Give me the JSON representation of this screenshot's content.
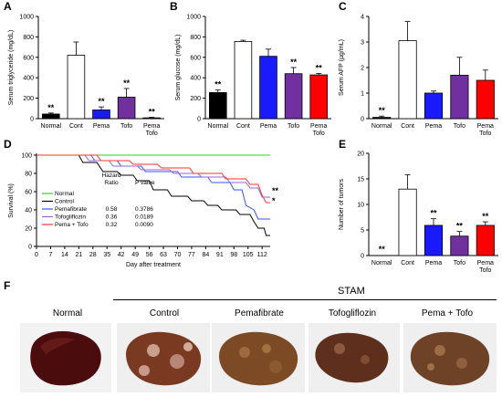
{
  "figure": {
    "panels": [
      "A",
      "B",
      "C",
      "D",
      "E",
      "F"
    ],
    "colors": {
      "normal": "#000000",
      "cont": "#ffffff",
      "pema": "#1a1aff",
      "tofo": "#7030a0",
      "pematofo": "#ff0000",
      "pematofo_line": "#ff3333",
      "survival_normal": "#33cc33",
      "survival_pema": "#3355ff",
      "survival_tofo": "#9966cc"
    },
    "sig": "**",
    "sig_single": "*"
  },
  "chart_data": [
    {
      "panel": "A",
      "type": "bar",
      "categories": [
        "Normal",
        "Cont",
        "Pema",
        "Tofo",
        "Pema\nTofo"
      ],
      "cat_lines": [
        [
          "Normal"
        ],
        [
          "Cont"
        ],
        [
          "Pema"
        ],
        [
          "Tofo"
        ],
        [
          "Pema",
          "Tofo"
        ]
      ],
      "values": [
        45,
        620,
        85,
        210,
        8
      ],
      "errors": [
        10,
        130,
        30,
        85,
        5
      ],
      "sig": [
        "**",
        "",
        "**",
        "**",
        "**"
      ],
      "ylabel": "Serum triglyceride (mg/dL)",
      "ylim": [
        0,
        1000
      ],
      "yticks": [
        "0",
        "200",
        "400",
        "600",
        "800",
        "1000"
      ]
    },
    {
      "panel": "B",
      "type": "bar",
      "categories": [
        "Normal",
        "Cont",
        "Pema",
        "Tofo",
        "Pema\nTofo"
      ],
      "cat_lines": [
        [
          "Normal"
        ],
        [
          "Cont"
        ],
        [
          "Pema"
        ],
        [
          "Tofo"
        ],
        [
          "Pema",
          "Tofo"
        ]
      ],
      "values": [
        255,
        755,
        610,
        440,
        428
      ],
      "errors": [
        25,
        12,
        70,
        60,
        15
      ],
      "sig": [
        "**",
        "",
        "",
        "**",
        "**"
      ],
      "ylabel": "Serum glucose (mg/dL)",
      "ylim": [
        0,
        1000
      ],
      "yticks": [
        "0",
        "200",
        "400",
        "600",
        "800",
        "1000"
      ]
    },
    {
      "panel": "C",
      "type": "bar",
      "categories": [
        "Normal",
        "Cont",
        "Pema",
        "Tofo",
        "Pema\nTofo"
      ],
      "cat_lines": [
        [
          "Normal"
        ],
        [
          "Cont"
        ],
        [
          "Pema"
        ],
        [
          "Tofo"
        ],
        [
          "Pema",
          "Tofo"
        ]
      ],
      "values": [
        0.05,
        3.05,
        1.0,
        1.7,
        1.5
      ],
      "errors": [
        0.05,
        0.75,
        0.08,
        0.7,
        0.4
      ],
      "sig": [
        "**",
        "",
        "",
        "",
        ""
      ],
      "ylabel": "Serum AFP (µg/mL)",
      "ylim": [
        0,
        4
      ],
      "yticks": [
        "0",
        "1",
        "2",
        "3",
        "4"
      ]
    },
    {
      "panel": "D",
      "type": "line",
      "xlabel": "Day after treatment",
      "ylabel": "Survival (%)",
      "xlim": [
        0,
        116
      ],
      "ylim": [
        0,
        100
      ],
      "xticks": [
        "0",
        "7",
        "14",
        "21",
        "28",
        "35",
        "42",
        "49",
        "56",
        "63",
        "70",
        "77",
        "84",
        "91",
        "98",
        "105",
        "112"
      ],
      "yticks": [
        "0",
        "20",
        "40",
        "60",
        "80",
        "100"
      ],
      "series": [
        {
          "name": "Normal",
          "color": "#33cc33",
          "points": [
            [
              0,
              100
            ],
            [
              116,
              100
            ]
          ]
        },
        {
          "name": "Control",
          "color": "#000000",
          "points": [
            [
              0,
              100
            ],
            [
              21,
              100
            ],
            [
              23,
              92
            ],
            [
              30,
              92
            ],
            [
              33,
              82
            ],
            [
              40,
              82
            ],
            [
              42,
              78
            ],
            [
              48,
              78
            ],
            [
              50,
              72
            ],
            [
              56,
              72
            ],
            [
              58,
              62
            ],
            [
              65,
              62
            ],
            [
              67,
              55
            ],
            [
              75,
              55
            ],
            [
              77,
              50
            ],
            [
              83,
              50
            ],
            [
              85,
              45
            ],
            [
              90,
              45
            ],
            [
              92,
              40
            ],
            [
              99,
              40
            ],
            [
              101,
              35
            ],
            [
              106,
              35
            ],
            [
              108,
              27
            ],
            [
              110,
              20
            ],
            [
              113,
              20
            ],
            [
              114,
              12
            ],
            [
              116,
              12
            ]
          ]
        },
        {
          "name": "Pemafibrate",
          "color": "#3355ff",
          "points": [
            [
              0,
              100
            ],
            [
              27,
              100
            ],
            [
              29,
              94
            ],
            [
              40,
              94
            ],
            [
              42,
              88
            ],
            [
              52,
              88
            ],
            [
              54,
              82
            ],
            [
              70,
              82
            ],
            [
              72,
              76
            ],
            [
              85,
              76
            ],
            [
              87,
              70
            ],
            [
              96,
              70
            ],
            [
              98,
              62
            ],
            [
              102,
              62
            ],
            [
              104,
              45
            ],
            [
              108,
              40
            ],
            [
              110,
              30
            ],
            [
              116,
              30
            ]
          ]
        },
        {
          "name": "Tofogliflozin",
          "color": "#9966cc",
          "points": [
            [
              0,
              100
            ],
            [
              24,
              100
            ],
            [
              26,
              94
            ],
            [
              36,
              94
            ],
            [
              38,
              88
            ],
            [
              50,
              88
            ],
            [
              52,
              84
            ],
            [
              66,
              84
            ],
            [
              68,
              80
            ],
            [
              80,
              80
            ],
            [
              82,
              76
            ],
            [
              94,
              76
            ],
            [
              96,
              70
            ],
            [
              104,
              70
            ],
            [
              106,
              64
            ],
            [
              110,
              64
            ],
            [
              112,
              54
            ],
            [
              116,
              54
            ]
          ]
        },
        {
          "name": "Pema + Tofo",
          "color": "#ff3333",
          "points": [
            [
              0,
              100
            ],
            [
              30,
              100
            ],
            [
              32,
              94
            ],
            [
              46,
              94
            ],
            [
              48,
              90
            ],
            [
              60,
              90
            ],
            [
              62,
              86
            ],
            [
              76,
              86
            ],
            [
              78,
              80
            ],
            [
              92,
              80
            ],
            [
              94,
              74
            ],
            [
              104,
              74
            ],
            [
              106,
              68
            ],
            [
              110,
              68
            ],
            [
              112,
              56
            ],
            [
              114,
              48
            ],
            [
              116,
              48
            ]
          ]
        }
      ],
      "stats_header": {
        "hazard": "Hazard\nRatio",
        "hazard_lines": [
          "Hazard",
          "Ratio"
        ],
        "p": "P value"
      },
      "legend": [
        {
          "name": "Normal",
          "color": "#33cc33",
          "hr": "",
          "p": ""
        },
        {
          "name": "Control",
          "color": "#000000",
          "hr": "",
          "p": ""
        },
        {
          "name": "Pemafibrate",
          "color": "#3355ff",
          "hr": "0.58",
          "p": "0.3786"
        },
        {
          "name": "Tofogliflozin",
          "color": "#9966cc",
          "hr": "0.36",
          "p": "0.0189"
        },
        {
          "name": "Pema + Tofo",
          "color": "#ff3333",
          "hr": "0.32",
          "p": "0.0090"
        }
      ],
      "annotations": [
        "**",
        "*"
      ]
    },
    {
      "panel": "E",
      "type": "bar",
      "categories": [
        "Normal",
        "Cont",
        "Pema",
        "Tofo",
        "Pema\nTofo"
      ],
      "cat_lines": [
        [
          "Normal"
        ],
        [
          "Cont"
        ],
        [
          "Pema"
        ],
        [
          "Tofo"
        ],
        [
          "Pema",
          "Tofo"
        ]
      ],
      "values": [
        0,
        13,
        5.9,
        3.8,
        5.9
      ],
      "errors": [
        0,
        2.8,
        1.3,
        0.9,
        0.7
      ],
      "sig": [
        "**",
        "",
        "**",
        "**",
        "**"
      ],
      "ylabel": "Number of tumors",
      "ylim": [
        0,
        20
      ],
      "yticks": [
        "0",
        "5",
        "10",
        "15",
        "20"
      ]
    }
  ],
  "panelF": {
    "group_label": "STAM",
    "photos": [
      {
        "label": "Normal"
      },
      {
        "label": "Control"
      },
      {
        "label": "Pemafibrate"
      },
      {
        "label": "Tofogliflozin"
      },
      {
        "label": "Pema + Tofo"
      }
    ]
  }
}
